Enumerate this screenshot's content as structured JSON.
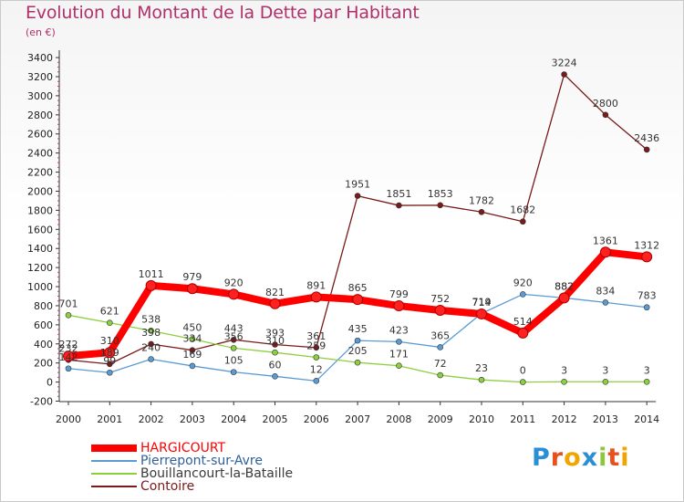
{
  "chart_data": {
    "type": "line",
    "title": "Evolution du Montant de la Dette par Habitant",
    "subtitle": "(en €)",
    "x": [
      "2000",
      "2001",
      "2002",
      "2003",
      "2004",
      "2005",
      "2006",
      "2007",
      "2008",
      "2009",
      "2010",
      "2011",
      "2012",
      "2013",
      "2014"
    ],
    "ylim": [
      -200,
      3400
    ],
    "yticks": [
      -200,
      0,
      200,
      400,
      600,
      800,
      1000,
      1200,
      1400,
      1600,
      1800,
      2000,
      2200,
      2400,
      2600,
      2800,
      3000,
      3200,
      3400
    ],
    "grid": false,
    "legend_position": "bottom-left",
    "series": [
      {
        "name": "HARGICOURT",
        "color": "#ff0000",
        "values": [
          272,
          310,
          1011,
          979,
          920,
          821,
          891,
          865,
          799,
          752,
          714,
          514,
          882,
          1361,
          1312
        ]
      },
      {
        "name": "Pierrepont-sur-Avre",
        "color": "#5b9bd5",
        "values": [
          142,
          99,
          240,
          169,
          105,
          60,
          12,
          435,
          423,
          365,
          719,
          920,
          882,
          834,
          783
        ]
      },
      {
        "name": "Bouillancourt-la-Bataille",
        "color": "#8ccf3f",
        "values": [
          701,
          621,
          538,
          450,
          356,
          310,
          259,
          205,
          171,
          72,
          23,
          0,
          3,
          3,
          3
        ]
      },
      {
        "name": "Contoire",
        "color": "#7a1a1a",
        "values": [
          232,
          189,
          398,
          334,
          443,
          393,
          361,
          1951,
          1851,
          1853,
          1782,
          1682,
          3224,
          2800,
          2436
        ]
      }
    ]
  },
  "logo": {
    "text": "Proxiti",
    "letters": [
      "P",
      "r",
      "o",
      "x",
      "i",
      "t",
      "i"
    ],
    "colors": [
      "#2b8fd6",
      "#e8501e",
      "#f0a500",
      "#2b8fd6",
      "#8dc63f",
      "#e8501e",
      "#f0a500"
    ]
  }
}
